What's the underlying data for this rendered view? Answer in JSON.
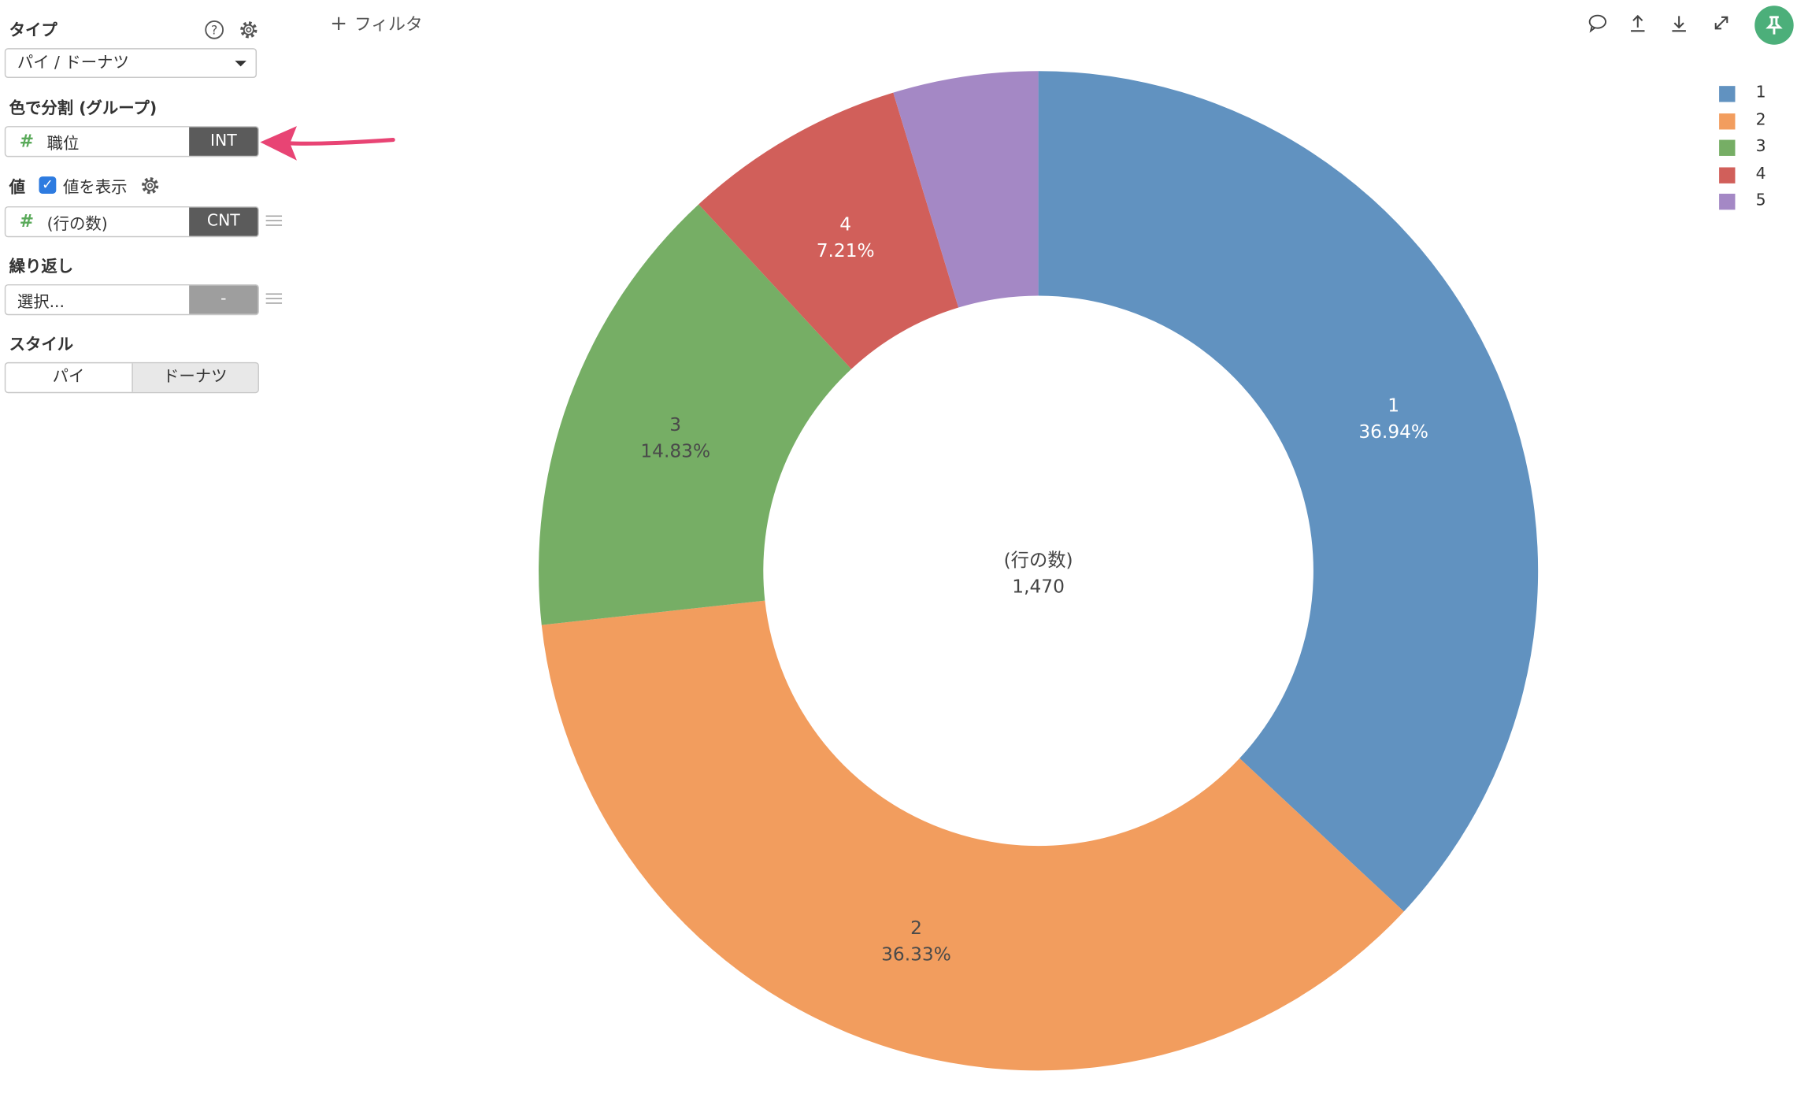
{
  "sidebar": {
    "type_label": "タイプ",
    "type_value": "パイ / ドーナツ",
    "group_label": "色で分割 (グループ)",
    "group_field": "職位",
    "group_tag": "INT",
    "value_label": "値",
    "show_values_label": "値を表示",
    "show_values_checked": true,
    "value_field": "(行の数)",
    "value_tag": "CNT",
    "repeat_label": "繰り返し",
    "repeat_placeholder": "選択...",
    "repeat_tag": "-",
    "style_label": "スタイル",
    "style_options": [
      "パイ",
      "ドーナツ"
    ],
    "style_selected": "ドーナツ"
  },
  "toolbar": {
    "filter_label": "フィルタ",
    "icons": [
      "comment-icon",
      "upload-icon",
      "download-icon",
      "expand-icon",
      "pin-icon"
    ]
  },
  "chart_data": {
    "type": "pie",
    "style": "donut",
    "categories": [
      "1",
      "2",
      "3",
      "4",
      "5"
    ],
    "values": [
      36.94,
      36.33,
      14.83,
      7.21,
      4.69
    ],
    "value_labels": [
      "36.94%",
      "36.33%",
      "14.83%",
      "7.21%",
      ""
    ],
    "colors": [
      "#6192c0",
      "#f29d5e",
      "#76ae65",
      "#d15f5a",
      "#a488c5"
    ],
    "center_label": "(行の数)",
    "center_value": "1,470",
    "legend_position": "top-right"
  }
}
